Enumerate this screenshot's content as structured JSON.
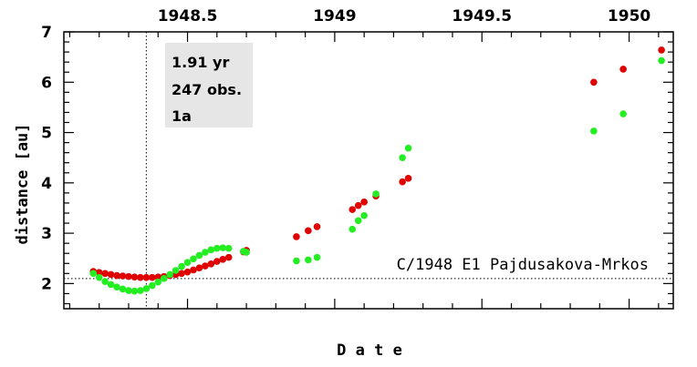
{
  "chart_data": {
    "type": "scatter",
    "title": "C/1948 E1 Pajdusakova-Mrkos",
    "xlabel": "D a t e",
    "ylabel": "distance [au]",
    "xlim": [
      1948.08,
      1950.15
    ],
    "ylim": [
      1.5,
      7
    ],
    "x_ticks": [
      {
        "value": 1948.5,
        "label": "1948.5"
      },
      {
        "value": 1949.0,
        "label": "1949"
      },
      {
        "value": 1949.5,
        "label": "1949.5"
      },
      {
        "value": 1950.0,
        "label": "1950"
      }
    ],
    "y_ticks": [
      {
        "value": 2,
        "label": "2"
      },
      {
        "value": 3,
        "label": "3"
      },
      {
        "value": 4,
        "label": "4"
      },
      {
        "value": 5,
        "label": "5"
      },
      {
        "value": 6,
        "label": "6"
      },
      {
        "value": 7,
        "label": "7"
      }
    ],
    "info_box": {
      "line1": "1.91 yr",
      "line2": "247 obs.",
      "line3": "1a",
      "background": "#e6e6e6"
    },
    "reference_lines": {
      "vertical_x": 1948.36,
      "horizontal_y": 2.1
    },
    "series": [
      {
        "color": "#e00000",
        "points": [
          [
            1948.18,
            2.24
          ],
          [
            1948.2,
            2.22
          ],
          [
            1948.22,
            2.2
          ],
          [
            1948.24,
            2.18
          ],
          [
            1948.26,
            2.16
          ],
          [
            1948.28,
            2.15
          ],
          [
            1948.3,
            2.14
          ],
          [
            1948.32,
            2.13
          ],
          [
            1948.34,
            2.12
          ],
          [
            1948.36,
            2.12
          ],
          [
            1948.38,
            2.12
          ],
          [
            1948.4,
            2.13
          ],
          [
            1948.42,
            2.14
          ],
          [
            1948.44,
            2.16
          ],
          [
            1948.46,
            2.18
          ],
          [
            1948.48,
            2.2
          ],
          [
            1948.5,
            2.23
          ],
          [
            1948.52,
            2.27
          ],
          [
            1948.54,
            2.31
          ],
          [
            1948.56,
            2.35
          ],
          [
            1948.58,
            2.39
          ],
          [
            1948.6,
            2.44
          ],
          [
            1948.62,
            2.48
          ],
          [
            1948.64,
            2.52
          ],
          [
            1948.69,
            2.63
          ],
          [
            1948.7,
            2.66
          ],
          [
            1948.87,
            2.93
          ],
          [
            1948.91,
            3.05
          ],
          [
            1948.94,
            3.13
          ],
          [
            1949.06,
            3.47
          ],
          [
            1949.08,
            3.55
          ],
          [
            1949.1,
            3.62
          ],
          [
            1949.14,
            3.74
          ],
          [
            1949.23,
            4.02
          ],
          [
            1949.25,
            4.09
          ],
          [
            1949.88,
            6.0
          ],
          [
            1949.98,
            6.26
          ],
          [
            1950.11,
            6.64
          ]
        ]
      },
      {
        "color": "#22ee22",
        "points": [
          [
            1948.18,
            2.2
          ],
          [
            1948.2,
            2.12
          ],
          [
            1948.22,
            2.04
          ],
          [
            1948.24,
            1.98
          ],
          [
            1948.26,
            1.93
          ],
          [
            1948.28,
            1.89
          ],
          [
            1948.3,
            1.86
          ],
          [
            1948.32,
            1.85
          ],
          [
            1948.34,
            1.86
          ],
          [
            1948.36,
            1.9
          ],
          [
            1948.38,
            1.96
          ],
          [
            1948.4,
            2.03
          ],
          [
            1948.42,
            2.1
          ],
          [
            1948.44,
            2.18
          ],
          [
            1948.46,
            2.26
          ],
          [
            1948.48,
            2.34
          ],
          [
            1948.5,
            2.42
          ],
          [
            1948.52,
            2.49
          ],
          [
            1948.54,
            2.56
          ],
          [
            1948.56,
            2.62
          ],
          [
            1948.58,
            2.67
          ],
          [
            1948.6,
            2.7
          ],
          [
            1948.62,
            2.71
          ],
          [
            1948.64,
            2.7
          ],
          [
            1948.69,
            2.64
          ],
          [
            1948.7,
            2.62
          ],
          [
            1948.87,
            2.45
          ],
          [
            1948.91,
            2.47
          ],
          [
            1948.94,
            2.52
          ],
          [
            1949.06,
            3.08
          ],
          [
            1949.08,
            3.25
          ],
          [
            1949.1,
            3.35
          ],
          [
            1949.14,
            3.78
          ],
          [
            1949.23,
            4.5
          ],
          [
            1949.25,
            4.69
          ],
          [
            1949.88,
            5.03
          ],
          [
            1949.98,
            5.37
          ],
          [
            1950.11,
            6.43
          ]
        ]
      }
    ]
  }
}
